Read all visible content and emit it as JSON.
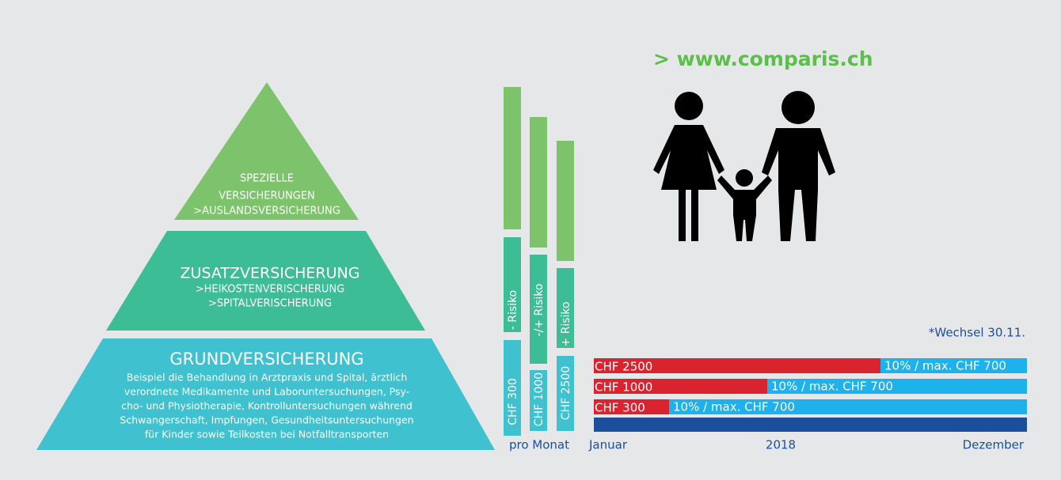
{
  "website": "> www.comparis.ch",
  "pyramid": {
    "top": {
      "lines": [
        "SPEZIELLE",
        "VERSICHERUNGEN",
        ">AUSLANDSVERSICHERUNG"
      ]
    },
    "middle": {
      "title": "ZUSATZVERSICHERUNG",
      "lines": [
        ">HEIKOSTENVERISCHERUNG",
        ">SPITALVERISCHERUNG"
      ]
    },
    "bottom": {
      "title": "GRUNDVERSICHERUNG",
      "lines": [
        "Beispiel die Behandlung in Arztpraxis und Spital, ärztlich",
        "verordnete Medikamente und Laboruntersuchungen, Psy-",
        "cho- und Physiotherapie, Kontrolluntersuchungen während",
        "Schwangerschaft, Impfungen, Gesundheitsuntersuchungen",
        "für Kinder sowie Teilkosten bei Notfalltransporten"
      ]
    }
  },
  "columns": [
    {
      "risk": "- Risiko",
      "franchise": "CHF 300"
    },
    {
      "risk": "-/+ Risiko",
      "franchise": "CHF 1000"
    },
    {
      "risk": "+ Risiko",
      "franchise": "CHF 2500"
    }
  ],
  "columns_caption": "pro Monat",
  "timeline": {
    "note": "*Wechsel 30.11.",
    "rows": [
      {
        "franchise": "CHF 2500",
        "retention": "10% / max. CHF 700"
      },
      {
        "franchise": "CHF 1000",
        "retention": "10% / max. CHF 700"
      },
      {
        "franchise": "CHF 300",
        "retention": "10% / max. CHF 700"
      }
    ],
    "start": "Januar",
    "year": "2018",
    "end": "Dezember"
  }
}
